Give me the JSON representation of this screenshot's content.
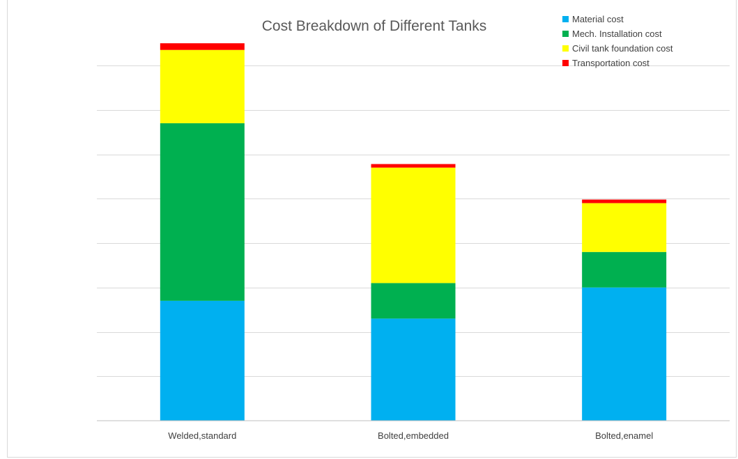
{
  "chart_data": {
    "type": "bar",
    "stacked": true,
    "title": "Cost Breakdown of Different Tanks",
    "xlabel": "",
    "ylabel": "",
    "categories": [
      "Welded,standard",
      "Bolted,embedded",
      "Bolted,enamel"
    ],
    "series": [
      {
        "name": "Material cost",
        "color": "#00b0f0",
        "values": [
          27,
          23,
          30
        ]
      },
      {
        "name": "Mech. Installation cost",
        "color": "#00b050",
        "values": [
          40,
          8,
          8
        ]
      },
      {
        "name": "Civil tank foundation cost",
        "color": "#ffff00",
        "values": [
          16.5,
          26,
          11
        ]
      },
      {
        "name": "Transportation cost",
        "color": "#ff0000",
        "values": [
          1.5,
          0.8,
          0.8
        ]
      }
    ],
    "ylim": [
      0,
      80
    ],
    "y_gridlines": [
      10,
      20,
      30,
      40,
      50,
      60,
      70,
      80
    ],
    "y_tick_labels_shown": false,
    "grid": true,
    "legend_position": "top-right"
  }
}
